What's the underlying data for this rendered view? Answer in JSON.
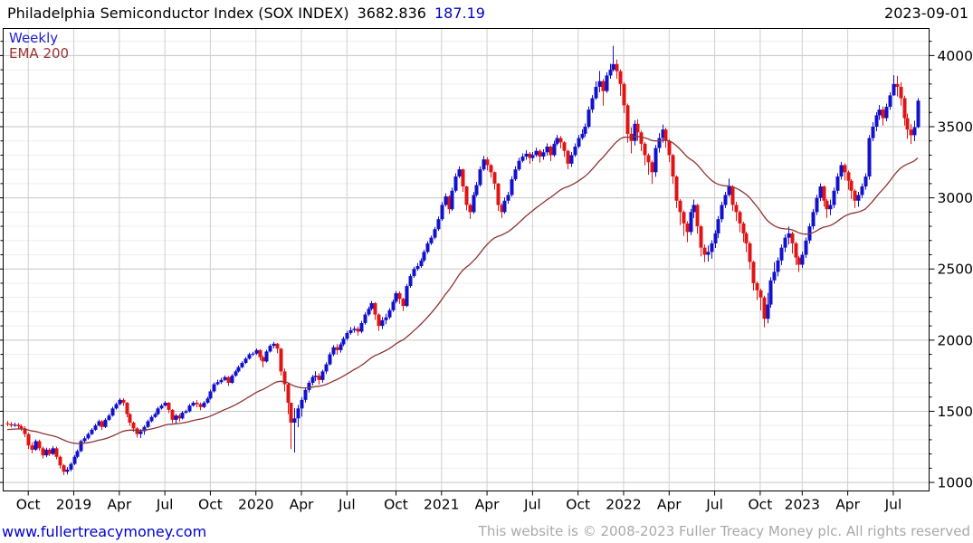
{
  "title": {
    "name": "Philadelphia Semiconductor Index (SOX INDEX)",
    "last": "3682.836",
    "change": "187.19",
    "date": "2023-09-01"
  },
  "legend": {
    "series": "Weekly",
    "ema": "EMA 200"
  },
  "footer": {
    "site": "www.fullertreacymoney.com",
    "copyright": "This website is © 2008-2023 Fuller Treacy Money plc. All rights reserved"
  },
  "colors": {
    "up": "#1212cc",
    "down": "#e01414",
    "ema": "#8e3434",
    "grid_minor": "#ededed",
    "grid_major": "#c6c6c6",
    "grid_vert": "#cfcfcf",
    "axis": "#000000",
    "accent_blue": "#0000cd",
    "accent_maroon": "#993333"
  },
  "chart_data": {
    "type": "candlestick",
    "interval": "weekly",
    "title": "Philadelphia Semiconductor Index (SOX INDEX)",
    "last_close": 3682.836,
    "change": 187.19,
    "as_of": "2023-09-01",
    "x_range": [
      "2018-08",
      "2023-09"
    ],
    "y_axis": {
      "min": 940,
      "max": 4190,
      "major_ticks": [
        1000,
        1500,
        2000,
        2500,
        3000,
        3500,
        4000
      ],
      "minor_step": 100,
      "side": "right"
    },
    "x_ticks": [
      {
        "label": "Oct",
        "week": 6
      },
      {
        "label": "2019",
        "week": 19
      },
      {
        "label": "Apr",
        "week": 32
      },
      {
        "label": "Jul",
        "week": 45
      },
      {
        "label": "Oct",
        "week": 58
      },
      {
        "label": "2020",
        "week": 71
      },
      {
        "label": "Apr",
        "week": 84
      },
      {
        "label": "Jul",
        "week": 97
      },
      {
        "label": "Oct",
        "week": 111
      },
      {
        "label": "2021",
        "week": 124
      },
      {
        "label": "Apr",
        "week": 137
      },
      {
        "label": "Jul",
        "week": 150
      },
      {
        "label": "Oct",
        "week": 163
      },
      {
        "label": "2022",
        "week": 176
      },
      {
        "label": "Apr",
        "week": 189
      },
      {
        "label": "Jul",
        "week": 202
      },
      {
        "label": "Oct",
        "week": 215
      },
      {
        "label": "2023",
        "week": 227
      },
      {
        "label": "Apr",
        "week": 240
      },
      {
        "label": "Jul",
        "week": 253
      }
    ],
    "open_rule": "previous_close",
    "first_open": 1415,
    "weeks_format": [
      "high",
      "low",
      "close"
    ],
    "weeks": [
      [
        1432,
        1395,
        1410
      ],
      [
        1424,
        1386,
        1400
      ],
      [
        1420,
        1390,
        1405
      ],
      [
        1418,
        1378,
        1395
      ],
      [
        1408,
        1362,
        1380
      ],
      [
        1395,
        1318,
        1340
      ],
      [
        1348,
        1236,
        1260
      ],
      [
        1282,
        1205,
        1230
      ],
      [
        1302,
        1222,
        1290
      ],
      [
        1300,
        1224,
        1240
      ],
      [
        1252,
        1168,
        1190
      ],
      [
        1244,
        1178,
        1230
      ],
      [
        1242,
        1186,
        1200
      ],
      [
        1255,
        1192,
        1240
      ],
      [
        1252,
        1163,
        1180
      ],
      [
        1190,
        1098,
        1120
      ],
      [
        1130,
        1052,
        1075
      ],
      [
        1108,
        1056,
        1090
      ],
      [
        1142,
        1078,
        1130
      ],
      [
        1192,
        1122,
        1180
      ],
      [
        1232,
        1170,
        1220
      ],
      [
        1300,
        1212,
        1290
      ],
      [
        1325,
        1280,
        1310
      ],
      [
        1352,
        1302,
        1340
      ],
      [
        1382,
        1332,
        1370
      ],
      [
        1412,
        1362,
        1400
      ],
      [
        1442,
        1394,
        1430
      ],
      [
        1438,
        1368,
        1390
      ],
      [
        1452,
        1382,
        1440
      ],
      [
        1482,
        1432,
        1470
      ],
      [
        1532,
        1462,
        1520
      ],
      [
        1562,
        1512,
        1550
      ],
      [
        1592,
        1542,
        1580
      ],
      [
        1592,
        1538,
        1560
      ],
      [
        1565,
        1458,
        1480
      ],
      [
        1488,
        1398,
        1420
      ],
      [
        1428,
        1356,
        1380
      ],
      [
        1388,
        1316,
        1340
      ],
      [
        1375,
        1312,
        1360
      ],
      [
        1402,
        1336,
        1390
      ],
      [
        1442,
        1382,
        1430
      ],
      [
        1472,
        1422,
        1460
      ],
      [
        1492,
        1452,
        1480
      ],
      [
        1532,
        1472,
        1520
      ],
      [
        1552,
        1512,
        1540
      ],
      [
        1572,
        1532,
        1560
      ],
      [
        1565,
        1488,
        1510
      ],
      [
        1515,
        1418,
        1440
      ],
      [
        1482,
        1408,
        1470
      ],
      [
        1482,
        1428,
        1450
      ],
      [
        1502,
        1442,
        1490
      ],
      [
        1512,
        1482,
        1500
      ],
      [
        1552,
        1492,
        1540
      ],
      [
        1572,
        1532,
        1560
      ],
      [
        1578,
        1528,
        1550
      ],
      [
        1562,
        1508,
        1530
      ],
      [
        1572,
        1522,
        1560
      ],
      [
        1602,
        1552,
        1590
      ],
      [
        1652,
        1582,
        1640
      ],
      [
        1702,
        1632,
        1690
      ],
      [
        1722,
        1682,
        1705
      ],
      [
        1735,
        1692,
        1720
      ],
      [
        1752,
        1712,
        1740
      ],
      [
        1748,
        1678,
        1700
      ],
      [
        1762,
        1692,
        1750
      ],
      [
        1792,
        1742,
        1780
      ],
      [
        1822,
        1772,
        1810
      ],
      [
        1852,
        1802,
        1840
      ],
      [
        1882,
        1832,
        1870
      ],
      [
        1912,
        1862,
        1900
      ],
      [
        1918,
        1888,
        1905
      ],
      [
        1942,
        1896,
        1930
      ],
      [
        1936,
        1858,
        1880
      ],
      [
        1892,
        1808,
        1850
      ],
      [
        1932,
        1842,
        1920
      ],
      [
        1972,
        1912,
        1960
      ],
      [
        1988,
        1942,
        1975
      ],
      [
        1980,
        1908,
        1940
      ],
      [
        1945,
        1752,
        1780
      ],
      [
        1800,
        1640,
        1690
      ],
      [
        1700,
        1480,
        1560
      ],
      [
        1560,
        1235,
        1420
      ],
      [
        1522,
        1210,
        1450
      ],
      [
        1545,
        1388,
        1520
      ],
      [
        1600,
        1462,
        1580
      ],
      [
        1662,
        1562,
        1650
      ],
      [
        1715,
        1632,
        1700
      ],
      [
        1755,
        1682,
        1740
      ],
      [
        1782,
        1712,
        1750
      ],
      [
        1768,
        1688,
        1720
      ],
      [
        1792,
        1702,
        1780
      ],
      [
        1845,
        1762,
        1830
      ],
      [
        1915,
        1822,
        1900
      ],
      [
        1965,
        1888,
        1950
      ],
      [
        1972,
        1898,
        1930
      ],
      [
        1985,
        1912,
        1970
      ],
      [
        2025,
        1958,
        2010
      ],
      [
        2065,
        1998,
        2050
      ],
      [
        2092,
        2038,
        2070
      ],
      [
        2098,
        2052,
        2080
      ],
      [
        2095,
        2032,
        2060
      ],
      [
        2135,
        2048,
        2120
      ],
      [
        2195,
        2108,
        2180
      ],
      [
        2235,
        2168,
        2220
      ],
      [
        2275,
        2208,
        2260
      ],
      [
        2268,
        2142,
        2180
      ],
      [
        2188,
        2065,
        2100
      ],
      [
        2162,
        2078,
        2140
      ],
      [
        2185,
        2112,
        2160
      ],
      [
        2225,
        2148,
        2210
      ],
      [
        2285,
        2198,
        2270
      ],
      [
        2345,
        2258,
        2330
      ],
      [
        2342,
        2255,
        2290
      ],
      [
        2298,
        2205,
        2240
      ],
      [
        2395,
        2232,
        2380
      ],
      [
        2465,
        2368,
        2450
      ],
      [
        2515,
        2438,
        2500
      ],
      [
        2542,
        2488,
        2520
      ],
      [
        2575,
        2508,
        2560
      ],
      [
        2635,
        2548,
        2620
      ],
      [
        2695,
        2608,
        2680
      ],
      [
        2735,
        2668,
        2720
      ],
      [
        2795,
        2708,
        2780
      ],
      [
        2868,
        2768,
        2850
      ],
      [
        2970,
        2838,
        2950
      ],
      [
        3032,
        2938,
        3010
      ],
      [
        3018,
        2888,
        2920
      ],
      [
        3072,
        2908,
        3050
      ],
      [
        3172,
        3038,
        3150
      ],
      [
        3222,
        3138,
        3200
      ],
      [
        3205,
        3042,
        3080
      ],
      [
        3085,
        2912,
        2950
      ],
      [
        2962,
        2852,
        2900
      ],
      [
        3042,
        2888,
        3020
      ],
      [
        3112,
        3008,
        3090
      ],
      [
        3222,
        3078,
        3200
      ],
      [
        3295,
        3188,
        3270
      ],
      [
        3285,
        3192,
        3230
      ],
      [
        3238,
        3142,
        3180
      ],
      [
        3185,
        3058,
        3100
      ],
      [
        3105,
        2908,
        2950
      ],
      [
        2962,
        2858,
        2900
      ],
      [
        3002,
        2888,
        2980
      ],
      [
        3042,
        2958,
        3020
      ],
      [
        3152,
        3008,
        3130
      ],
      [
        3222,
        3118,
        3200
      ],
      [
        3282,
        3188,
        3260
      ],
      [
        3312,
        3248,
        3290
      ],
      [
        3335,
        3268,
        3310
      ],
      [
        3322,
        3238,
        3280
      ],
      [
        3322,
        3258,
        3300
      ],
      [
        3352,
        3288,
        3330
      ],
      [
        3342,
        3248,
        3290
      ],
      [
        3342,
        3268,
        3320
      ],
      [
        3382,
        3298,
        3360
      ],
      [
        3368,
        3258,
        3300
      ],
      [
        3402,
        3288,
        3380
      ],
      [
        3442,
        3368,
        3420
      ],
      [
        3435,
        3348,
        3390
      ],
      [
        3398,
        3288,
        3330
      ],
      [
        3338,
        3202,
        3240
      ],
      [
        3322,
        3218,
        3300
      ],
      [
        3382,
        3288,
        3360
      ],
      [
        3442,
        3348,
        3420
      ],
      [
        3482,
        3408,
        3450
      ],
      [
        3522,
        3428,
        3500
      ],
      [
        3642,
        3488,
        3620
      ],
      [
        3722,
        3598,
        3700
      ],
      [
        3818,
        3688,
        3780
      ],
      [
        3892,
        3742,
        3820
      ],
      [
        3835,
        3648,
        3750
      ],
      [
        3882,
        3738,
        3860
      ],
      [
        3942,
        3838,
        3900
      ],
      [
        4068,
        3888,
        3940
      ],
      [
        3972,
        3838,
        3890
      ],
      [
        3902,
        3718,
        3800
      ],
      [
        3812,
        3595,
        3650
      ],
      [
        3662,
        3388,
        3450
      ],
      [
        3495,
        3312,
        3400
      ],
      [
        3545,
        3368,
        3520
      ],
      [
        3552,
        3402,
        3460
      ],
      [
        3472,
        3328,
        3380
      ],
      [
        3392,
        3228,
        3300
      ],
      [
        3312,
        3162,
        3250
      ],
      [
        3262,
        3098,
        3180
      ],
      [
        3372,
        3148,
        3350
      ],
      [
        3455,
        3318,
        3420
      ],
      [
        3515,
        3388,
        3480
      ],
      [
        3492,
        3352,
        3400
      ],
      [
        3412,
        3252,
        3300
      ],
      [
        3308,
        3098,
        3150
      ],
      [
        3158,
        2928,
        2980
      ],
      [
        2992,
        2808,
        2900
      ],
      [
        2912,
        2732,
        2820
      ],
      [
        2835,
        2688,
        2760
      ],
      [
        2922,
        2738,
        2900
      ],
      [
        2988,
        2858,
        2950
      ],
      [
        2958,
        2748,
        2800
      ],
      [
        2808,
        2588,
        2650
      ],
      [
        2672,
        2548,
        2600
      ],
      [
        2665,
        2552,
        2620
      ],
      [
        2702,
        2572,
        2680
      ],
      [
        2772,
        2648,
        2750
      ],
      [
        2872,
        2718,
        2850
      ],
      [
        2972,
        2828,
        2950
      ],
      [
        3042,
        2928,
        3020
      ],
      [
        3135,
        3008,
        3080
      ],
      [
        3088,
        2908,
        2950
      ],
      [
        2972,
        2838,
        2900
      ],
      [
        2912,
        2758,
        2820
      ],
      [
        2832,
        2688,
        2750
      ],
      [
        2762,
        2618,
        2680
      ],
      [
        2692,
        2498,
        2550
      ],
      [
        2558,
        2348,
        2400
      ],
      [
        2412,
        2282,
        2350
      ],
      [
        2362,
        2208,
        2300
      ],
      [
        2312,
        2090,
        2150
      ],
      [
        2332,
        2118,
        2250
      ],
      [
        2442,
        2228,
        2420
      ],
      [
        2548,
        2398,
        2480
      ],
      [
        2582,
        2448,
        2560
      ],
      [
        2672,
        2528,
        2650
      ],
      [
        2742,
        2618,
        2720
      ],
      [
        2798,
        2672,
        2750
      ],
      [
        2762,
        2608,
        2680
      ],
      [
        2692,
        2528,
        2580
      ],
      [
        2592,
        2478,
        2530
      ],
      [
        2622,
        2508,
        2600
      ],
      [
        2722,
        2578,
        2700
      ],
      [
        2822,
        2678,
        2800
      ],
      [
        2922,
        2778,
        2900
      ],
      [
        3022,
        2878,
        3000
      ],
      [
        3102,
        2978,
        3080
      ],
      [
        3088,
        2938,
        2980
      ],
      [
        2992,
        2858,
        2920
      ],
      [
        2988,
        2878,
        2950
      ],
      [
        3072,
        2928,
        3050
      ],
      [
        3172,
        3028,
        3150
      ],
      [
        3252,
        3128,
        3230
      ],
      [
        3242,
        3122,
        3180
      ],
      [
        3192,
        3058,
        3120
      ],
      [
        3132,
        2992,
        3050
      ],
      [
        3062,
        2928,
        2980
      ],
      [
        3042,
        2938,
        3020
      ],
      [
        3102,
        2998,
        3080
      ],
      [
        3172,
        3058,
        3150
      ],
      [
        3442,
        3128,
        3420
      ],
      [
        3532,
        3398,
        3500
      ],
      [
        3602,
        3468,
        3580
      ],
      [
        3652,
        3548,
        3620
      ],
      [
        3642,
        3508,
        3560
      ],
      [
        3662,
        3538,
        3640
      ],
      [
        3742,
        3618,
        3720
      ],
      [
        3862,
        3718,
        3800
      ],
      [
        3858,
        3712,
        3780
      ],
      [
        3812,
        3648,
        3700
      ],
      [
        3718,
        3508,
        3560
      ],
      [
        3592,
        3415,
        3480
      ],
      [
        3518,
        3378,
        3440
      ],
      [
        3542,
        3398,
        3496
      ],
      [
        3700,
        3490,
        3683
      ]
    ],
    "ema": {
      "label": "EMA 200",
      "alpha": 0.049,
      "seed": 1370
    },
    "legend_position": "top-left",
    "grid": true
  }
}
